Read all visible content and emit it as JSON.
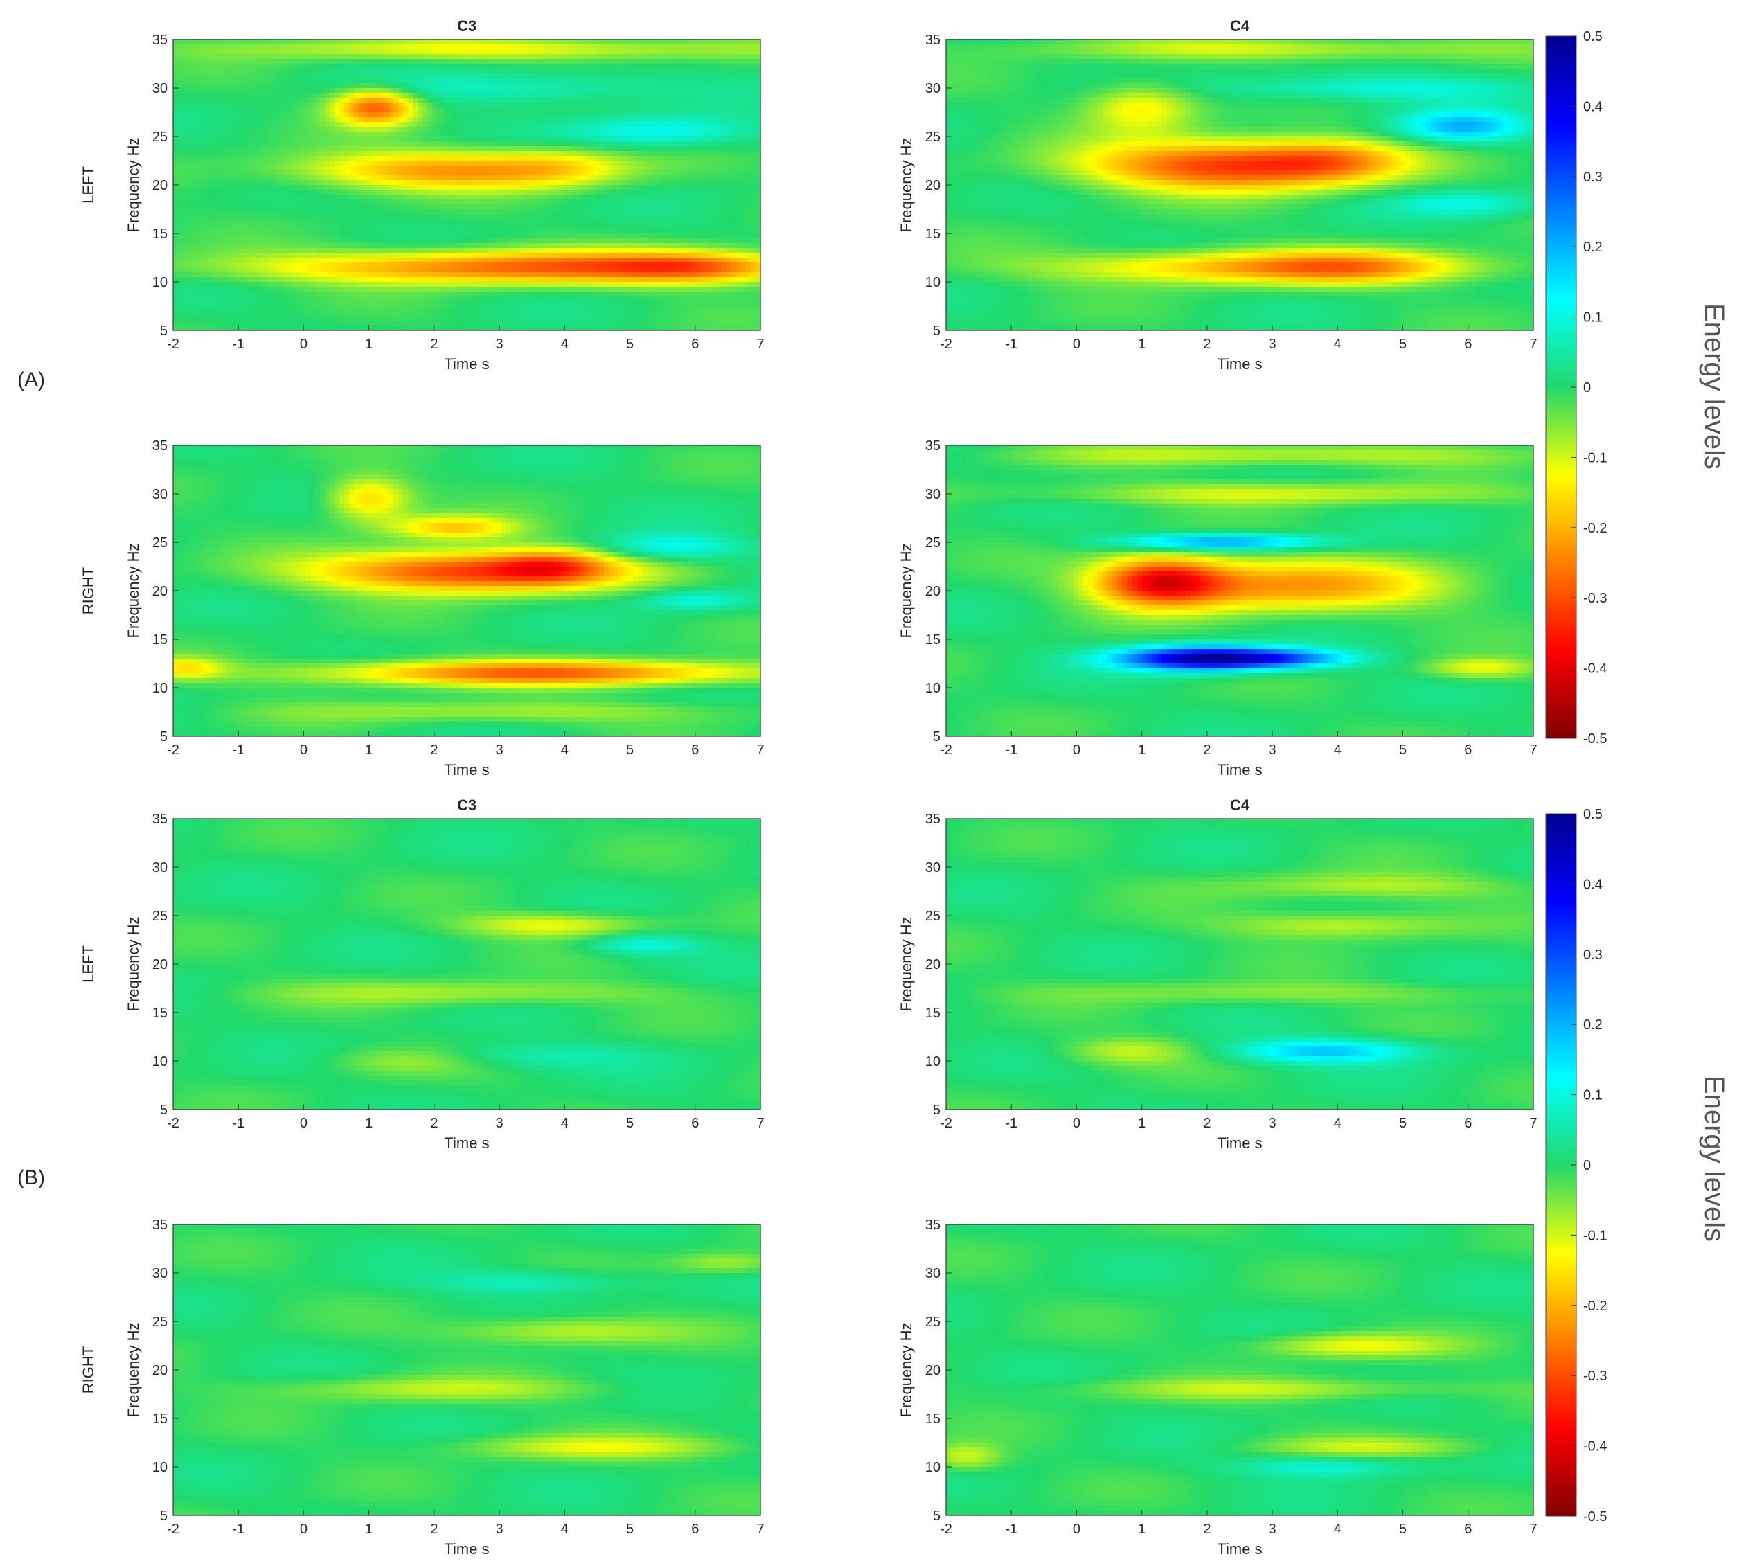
{
  "section_labels": [
    "(A)",
    "(B)"
  ],
  "colorbar": {
    "label": "Energy levels",
    "ticks": [
      "0.5",
      "0.4",
      "0.3",
      "0.2",
      "0.1",
      "0",
      "-0.1",
      "-0.2",
      "-0.3",
      "-0.4",
      "-0.5"
    ],
    "range": [
      -0.5,
      0.5
    ],
    "colormap": "jet (reversed: red = -0.5, blue = +0.5)"
  },
  "chart_data": [
    {
      "type": "heatmap",
      "section": "(A)",
      "title": "C3",
      "row_label": "LEFT",
      "xlabel": "Time s",
      "ylabel": "Frequency Hz",
      "xlim": [
        -2,
        7
      ],
      "ylim": [
        5,
        35
      ],
      "xticks": [
        "-2",
        "-1",
        "0",
        "1",
        "2",
        "3",
        "4",
        "5",
        "6",
        "7"
      ],
      "yticks": [
        "35",
        "30",
        "25",
        "20",
        "15",
        "10",
        "5"
      ],
      "blobs": [
        {
          "t": 1.1,
          "f": 28,
          "st": 0.45,
          "sf": 1.3,
          "v": -0.28
        },
        {
          "t": 2.2,
          "f": 21.5,
          "st": 1.6,
          "sf": 1.4,
          "v": -0.22
        },
        {
          "t": 3.9,
          "f": 22,
          "st": 0.7,
          "sf": 1.4,
          "v": -0.08
        },
        {
          "t": 3.5,
          "f": 11.5,
          "st": 2.8,
          "sf": 1.2,
          "v": -0.28
        },
        {
          "t": 6.0,
          "f": 11.5,
          "st": 0.9,
          "sf": 1.1,
          "v": -0.14
        },
        {
          "t": 5.5,
          "f": 25.5,
          "st": 1.0,
          "sf": 1.2,
          "v": 0.12
        },
        {
          "t": 3.5,
          "f": 30,
          "st": 1.5,
          "sf": 1.2,
          "v": 0.08
        },
        {
          "t": 3,
          "f": 34,
          "st": 3,
          "sf": 0.8,
          "v": -0.12
        }
      ]
    },
    {
      "type": "heatmap",
      "section": "(A)",
      "title": "C4",
      "row_label": "",
      "xlabel": "Time s",
      "ylabel": "Frequency Hz",
      "xlim": [
        -2,
        7
      ],
      "ylim": [
        5,
        35
      ],
      "xticks": [
        "-2",
        "-1",
        "0",
        "1",
        "2",
        "3",
        "4",
        "5",
        "6",
        "7"
      ],
      "yticks": [
        "35",
        "30",
        "25",
        "20",
        "15",
        "10",
        "5"
      ],
      "blobs": [
        {
          "t": 1.0,
          "f": 28,
          "st": 0.6,
          "sf": 1.8,
          "v": -0.14
        },
        {
          "t": 2.3,
          "f": 22,
          "st": 1.5,
          "sf": 1.8,
          "v": -0.32
        },
        {
          "t": 3.9,
          "f": 22.5,
          "st": 0.8,
          "sf": 1.5,
          "v": -0.14
        },
        {
          "t": 3.0,
          "f": 11.5,
          "st": 2.2,
          "sf": 1.2,
          "v": -0.22
        },
        {
          "t": 4.2,
          "f": 11.5,
          "st": 0.9,
          "sf": 1.2,
          "v": -0.08
        },
        {
          "t": 5.9,
          "f": 26,
          "st": 0.7,
          "sf": 1.2,
          "v": 0.2
        },
        {
          "t": 4.5,
          "f": 30,
          "st": 1.6,
          "sf": 1.0,
          "v": 0.1
        },
        {
          "t": 6.0,
          "f": 18,
          "st": 0.8,
          "sf": 1.0,
          "v": 0.1
        },
        {
          "t": 3,
          "f": 34,
          "st": 2.5,
          "sf": 0.8,
          "v": -0.1
        }
      ]
    },
    {
      "type": "heatmap",
      "section": "(A)",
      "title": "",
      "row_label": "RIGHT",
      "xlabel": "Time s",
      "ylabel": "Frequency Hz",
      "xlim": [
        -2,
        7
      ],
      "ylim": [
        5,
        35
      ],
      "xticks": [
        "-2",
        "-1",
        "0",
        "1",
        "2",
        "3",
        "4",
        "5",
        "6",
        "7"
      ],
      "yticks": [
        "35",
        "30",
        "25",
        "20",
        "15",
        "10",
        "5"
      ],
      "blobs": [
        {
          "t": 1.0,
          "f": 29.5,
          "st": 0.45,
          "sf": 1.6,
          "v": -0.17
        },
        {
          "t": 2.3,
          "f": 26.5,
          "st": 0.7,
          "sf": 0.9,
          "v": -0.17
        },
        {
          "t": 2.5,
          "f": 22,
          "st": 1.6,
          "sf": 1.5,
          "v": -0.33
        },
        {
          "t": 3.8,
          "f": 22.5,
          "st": 0.6,
          "sf": 1.2,
          "v": -0.16
        },
        {
          "t": 3.6,
          "f": 11.5,
          "st": 2.4,
          "sf": 0.9,
          "v": -0.27
        },
        {
          "t": 5.6,
          "f": 24.5,
          "st": 0.8,
          "sf": 1.0,
          "v": 0.12
        },
        {
          "t": 6.0,
          "f": 19,
          "st": 0.6,
          "sf": 0.8,
          "v": 0.1
        },
        {
          "t": -1.8,
          "f": 12,
          "st": 0.4,
          "sf": 0.8,
          "v": -0.12
        },
        {
          "t": 3,
          "f": 7.5,
          "st": 2.2,
          "sf": 0.8,
          "v": -0.08
        }
      ]
    },
    {
      "type": "heatmap",
      "section": "(A)",
      "title": "",
      "row_label": "",
      "xlabel": "Time s",
      "ylabel": "Frequency Hz",
      "xlim": [
        -2,
        7
      ],
      "ylim": [
        5,
        35
      ],
      "xticks": [
        "-2",
        "-1",
        "0",
        "1",
        "2",
        "3",
        "4",
        "5",
        "6",
        "7"
      ],
      "yticks": [
        "35",
        "30",
        "25",
        "20",
        "15",
        "10",
        "5"
      ],
      "blobs": [
        {
          "t": 1.3,
          "f": 21,
          "st": 0.7,
          "sf": 1.8,
          "v": -0.34
        },
        {
          "t": 3.3,
          "f": 20.5,
          "st": 1.6,
          "sf": 1.9,
          "v": -0.22
        },
        {
          "t": 2.2,
          "f": 25,
          "st": 1.1,
          "sf": 0.6,
          "v": 0.23
        },
        {
          "t": 1.9,
          "f": 13,
          "st": 0.9,
          "sf": 0.9,
          "v": 0.45
        },
        {
          "t": 3.2,
          "f": 13,
          "st": 0.8,
          "sf": 0.7,
          "v": 0.2
        },
        {
          "t": 3,
          "f": 30,
          "st": 2.5,
          "sf": 0.8,
          "v": -0.1
        },
        {
          "t": 6.2,
          "f": 12,
          "st": 0.6,
          "sf": 0.8,
          "v": -0.12
        },
        {
          "t": 3,
          "f": 34,
          "st": 2.5,
          "sf": 0.8,
          "v": -0.1
        }
      ]
    },
    {
      "type": "heatmap",
      "section": "(B)",
      "title": "C3",
      "row_label": "LEFT",
      "xlabel": "Time s",
      "ylabel": "Frequency Hz",
      "xlim": [
        -2,
        7
      ],
      "ylim": [
        5,
        35
      ],
      "xticks": [
        "-2",
        "-1",
        "0",
        "1",
        "2",
        "3",
        "4",
        "5",
        "6",
        "7"
      ],
      "yticks": [
        "35",
        "30",
        "25",
        "20",
        "15",
        "10",
        "5"
      ],
      "blobs": [
        {
          "t": 3.8,
          "f": 24,
          "st": 1.0,
          "sf": 0.9,
          "v": -0.12
        },
        {
          "t": 5.2,
          "f": 22,
          "st": 0.6,
          "sf": 0.8,
          "v": 0.1
        },
        {
          "t": 2.5,
          "f": 17,
          "st": 2.0,
          "sf": 0.9,
          "v": -0.08
        },
        {
          "t": 1.5,
          "f": 10,
          "st": 0.8,
          "sf": 1.0,
          "v": -0.06
        },
        {
          "t": 3.5,
          "f": 10.5,
          "st": 1.2,
          "sf": 1.0,
          "v": 0.06
        }
      ]
    },
    {
      "type": "heatmap",
      "section": "(B)",
      "title": "C4",
      "row_label": "",
      "xlabel": "Time s",
      "ylabel": "Frequency Hz",
      "xlim": [
        -2,
        7
      ],
      "ylim": [
        5,
        35
      ],
      "xticks": [
        "-2",
        "-1",
        "0",
        "1",
        "2",
        "3",
        "4",
        "5",
        "6",
        "7"
      ],
      "yticks": [
        "35",
        "30",
        "25",
        "20",
        "15",
        "10",
        "5"
      ],
      "blobs": [
        {
          "t": 3.8,
          "f": 11,
          "st": 1.0,
          "sf": 0.9,
          "v": 0.18
        },
        {
          "t": 4.0,
          "f": 24,
          "st": 1.2,
          "sf": 1.0,
          "v": -0.1
        },
        {
          "t": 4.5,
          "f": 28,
          "st": 1.6,
          "sf": 1.0,
          "v": -0.08
        },
        {
          "t": 0.8,
          "f": 11,
          "st": 0.7,
          "sf": 1.0,
          "v": -0.09
        },
        {
          "t": 3,
          "f": 17,
          "st": 2.5,
          "sf": 0.8,
          "v": -0.06
        }
      ]
    },
    {
      "type": "heatmap",
      "section": "(B)",
      "title": "",
      "row_label": "RIGHT",
      "xlabel": "Time s",
      "ylabel": "Frequency Hz",
      "xlim": [
        -2,
        7
      ],
      "ylim": [
        5,
        35
      ],
      "xticks": [
        "-2",
        "-1",
        "0",
        "1",
        "2",
        "3",
        "4",
        "5",
        "6",
        "7"
      ],
      "yticks": [
        "35",
        "30",
        "25",
        "20",
        "15",
        "10",
        "5"
      ],
      "blobs": [
        {
          "t": 4.0,
          "f": 24,
          "st": 1.2,
          "sf": 1.0,
          "v": -0.1
        },
        {
          "t": 4.5,
          "f": 12,
          "st": 1.5,
          "sf": 0.9,
          "v": -0.1
        },
        {
          "t": 2.0,
          "f": 18,
          "st": 1.8,
          "sf": 0.9,
          "v": -0.08
        },
        {
          "t": 3.5,
          "f": 29,
          "st": 1.0,
          "sf": 0.9,
          "v": 0.08
        },
        {
          "t": 6.5,
          "f": 31,
          "st": 0.6,
          "sf": 0.8,
          "v": -0.08
        }
      ]
    },
    {
      "type": "heatmap",
      "section": "(B)",
      "title": "",
      "row_label": "",
      "xlabel": "Time s",
      "ylabel": "Frequency Hz",
      "xlim": [
        -2,
        7
      ],
      "ylim": [
        5,
        35
      ],
      "xticks": [
        "-2",
        "-1",
        "0",
        "1",
        "2",
        "3",
        "4",
        "5",
        "6",
        "7"
      ],
      "yticks": [
        "35",
        "30",
        "25",
        "20",
        "15",
        "10",
        "5"
      ],
      "blobs": [
        {
          "t": 4.2,
          "f": 22.5,
          "st": 1.0,
          "sf": 0.9,
          "v": -0.12
        },
        {
          "t": 4.5,
          "f": 12,
          "st": 1.2,
          "sf": 0.8,
          "v": -0.08
        },
        {
          "t": 3.8,
          "f": 10,
          "st": 0.9,
          "sf": 0.8,
          "v": 0.1
        },
        {
          "t": -1.7,
          "f": 11,
          "st": 0.4,
          "sf": 1.0,
          "v": -0.1
        },
        {
          "t": 3,
          "f": 18,
          "st": 2.2,
          "sf": 0.8,
          "v": -0.08
        }
      ]
    }
  ]
}
